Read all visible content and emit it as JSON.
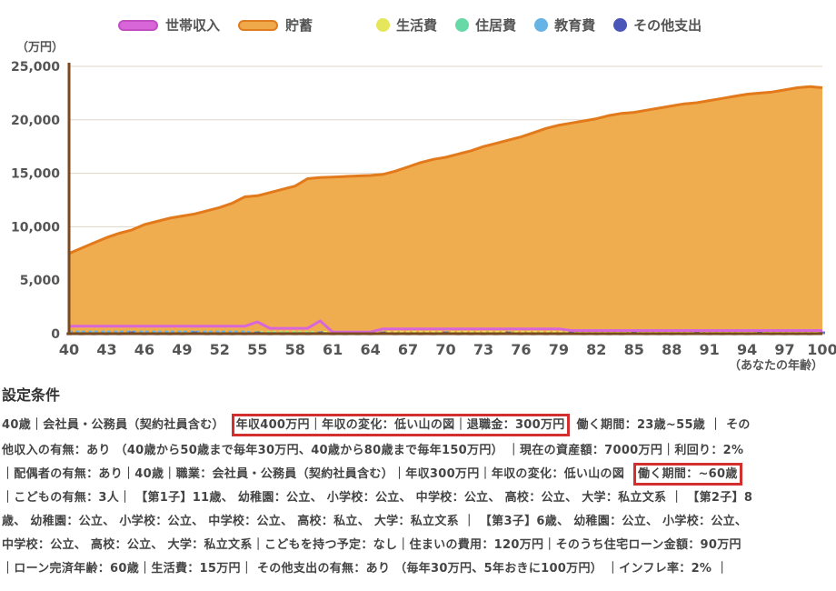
{
  "legend": [
    {
      "label": "世帯収入",
      "color": "#d966d9",
      "shape": "pill"
    },
    {
      "label": "貯蓄",
      "color": "#f0a94a",
      "shape": "pill"
    },
    {
      "label": "生活費",
      "color": "#e6e65a",
      "shape": "dot"
    },
    {
      "label": "住居費",
      "color": "#66d9a6",
      "shape": "dot"
    },
    {
      "label": "教育費",
      "color": "#66b3e6",
      "shape": "dot"
    },
    {
      "label": "その他支出",
      "color": "#4a56b8",
      "shape": "dot"
    }
  ],
  "chart_data": {
    "type": "area",
    "y_unit": "（万円）",
    "xlabel": "（あなたの年齢）",
    "ylim": [
      0,
      25000
    ],
    "yticks": [
      "0",
      "5,000",
      "10,000",
      "15,000",
      "20,000",
      "25,000"
    ],
    "xticks": [
      40,
      43,
      46,
      49,
      52,
      55,
      58,
      61,
      64,
      67,
      70,
      73,
      76,
      79,
      82,
      85,
      88,
      91,
      94,
      97,
      100
    ],
    "grid": true,
    "x": [
      40,
      41,
      42,
      43,
      44,
      45,
      46,
      47,
      48,
      49,
      50,
      51,
      52,
      53,
      54,
      55,
      56,
      57,
      58,
      59,
      60,
      61,
      62,
      63,
      64,
      65,
      66,
      67,
      68,
      69,
      70,
      71,
      72,
      73,
      74,
      75,
      76,
      77,
      78,
      79,
      80,
      81,
      82,
      83,
      84,
      85,
      86,
      87,
      88,
      89,
      90,
      91,
      92,
      93,
      94,
      95,
      96,
      97,
      98,
      99,
      100
    ],
    "series": [
      {
        "name": "貯蓄",
        "values": [
          7500,
          8000,
          8500,
          9000,
          9400,
          9700,
          10200,
          10500,
          10800,
          11000,
          11200,
          11500,
          11800,
          12200,
          12800,
          12900,
          13200,
          13500,
          13800,
          14500,
          14600,
          14650,
          14700,
          14750,
          14800,
          14900,
          15200,
          15600,
          16000,
          16300,
          16500,
          16800,
          17100,
          17500,
          17800,
          18100,
          18400,
          18800,
          19200,
          19500,
          19700,
          19900,
          20100,
          20400,
          20600,
          20700,
          20900,
          21100,
          21300,
          21500,
          21600,
          21800,
          22000,
          22200,
          22400,
          22500,
          22600,
          22800,
          23000,
          23100,
          23000
        ]
      },
      {
        "name": "世帯収入",
        "values": [
          700,
          700,
          700,
          700,
          700,
          700,
          700,
          700,
          700,
          700,
          700,
          700,
          700,
          700,
          700,
          1100,
          500,
          500,
          500,
          500,
          1200,
          150,
          150,
          150,
          150,
          450,
          450,
          450,
          450,
          450,
          450,
          450,
          450,
          450,
          450,
          450,
          450,
          450,
          450,
          450,
          300,
          300,
          300,
          300,
          300,
          300,
          300,
          300,
          300,
          300,
          300,
          300,
          300,
          300,
          300,
          300,
          300,
          300,
          300,
          300,
          300
        ]
      },
      {
        "name": "生活費",
        "values": [
          180,
          180,
          180,
          180,
          180,
          180,
          180,
          180,
          180,
          180,
          180,
          180,
          180,
          180,
          180,
          180,
          180,
          180,
          180,
          180,
          180,
          180,
          180,
          180,
          180,
          180,
          180,
          180,
          180,
          180,
          180,
          180,
          180,
          180,
          180,
          180,
          180,
          180,
          180,
          180,
          180,
          180,
          180,
          180,
          180,
          180,
          180,
          180,
          180,
          180,
          180,
          180,
          180,
          180,
          180,
          180,
          180,
          180,
          180,
          180,
          180
        ]
      },
      {
        "name": "住居費",
        "values": [
          120,
          120,
          120,
          120,
          120,
          120,
          120,
          120,
          120,
          120,
          120,
          120,
          120,
          120,
          120,
          120,
          120,
          120,
          120,
          120,
          120,
          0,
          0,
          0,
          0,
          0,
          0,
          0,
          0,
          0,
          0,
          0,
          0,
          0,
          0,
          0,
          0,
          0,
          0,
          0,
          0,
          0,
          0,
          0,
          0,
          0,
          0,
          0,
          0,
          0,
          0,
          0,
          0,
          0,
          0,
          0,
          0,
          0,
          0,
          0,
          0
        ]
      },
      {
        "name": "教育費",
        "values": [
          200,
          200,
          200,
          200,
          200,
          200,
          200,
          200,
          200,
          200,
          200,
          200,
          200,
          200,
          200,
          100,
          0,
          0,
          0,
          0,
          0,
          0,
          0,
          0,
          0,
          0,
          0,
          0,
          0,
          0,
          0,
          0,
          0,
          0,
          0,
          0,
          0,
          0,
          0,
          0,
          0,
          0,
          0,
          0,
          0,
          0,
          0,
          0,
          0,
          0,
          0,
          0,
          0,
          0,
          0,
          0,
          0,
          0,
          0,
          0,
          0
        ]
      },
      {
        "name": "その他支出",
        "values": [
          30,
          30,
          30,
          30,
          30,
          130,
          30,
          30,
          30,
          30,
          130,
          30,
          30,
          30,
          30,
          130,
          30,
          30,
          30,
          30,
          130,
          30,
          30,
          30,
          30,
          130,
          30,
          30,
          30,
          30,
          130,
          30,
          30,
          30,
          30,
          130,
          30,
          30,
          30,
          30,
          130,
          30,
          30,
          30,
          30,
          130,
          30,
          30,
          30,
          30,
          130,
          30,
          30,
          30,
          30,
          130,
          30,
          30,
          30,
          30,
          130
        ]
      }
    ]
  },
  "settings": {
    "title": "設定条件",
    "lines": [
      [
        "40歳｜会社員・公務員（契約社員含む）",
        "年収400万円｜年収の変化：低い山の図｜退職金：300万円",
        "働く期間：23歳~55歳 ｜ その"
      ],
      [
        "他収入の有無：あり （40歳から50歳まで毎年30万円、40歳から80歳まで毎年150万円） ｜現在の資産額：7000万円｜利回り：2%"
      ],
      [
        "｜配偶者の有無：あり｜40歳｜職業：会社員・公務員（契約社員含む）｜年収300万円｜年収の変化：低い山の図",
        "働く期間：~60歳"
      ],
      [
        "｜こどもの有無：3人｜ 【第1子】11歳、 幼稚園：公立、 小学校：公立、 中学校：公立、 高校：公立、 大学：私立文系 ｜ 【第2子】8"
      ],
      [
        "歳、 幼稚園：公立、 小学校：公立、 中学校：公立、 高校：私立、 大学：私立文系 ｜ 【第3子】6歳、 幼稚園：公立、 小学校：公立、"
      ],
      [
        "中学校：公立、 高校：公立、 大学：私立文系｜こどもを持つ予定：なし｜住まいの費用：120万円｜そのうち住宅ローン金額：90万円"
      ],
      [
        "｜ローン完済年齢：60歳｜生活費：15万円｜ その他支出の有無：あり （毎年30万円、5年おきに100万円） ｜インフレ率：2% ｜"
      ]
    ]
  }
}
